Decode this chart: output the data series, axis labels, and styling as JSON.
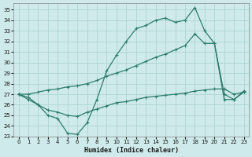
{
  "xlabel": "Humidex (Indice chaleur)",
  "bg_color": "#ceeaea",
  "grid_color": "#b0d4d4",
  "line_color": "#2e7d6e",
  "xlim": [
    -0.5,
    23.5
  ],
  "ylim": [
    23,
    35.6
  ],
  "xticks": [
    0,
    1,
    2,
    3,
    4,
    5,
    6,
    7,
    8,
    9,
    10,
    11,
    12,
    13,
    14,
    15,
    16,
    17,
    18,
    19,
    20,
    21,
    22,
    23
  ],
  "yticks": [
    23,
    24,
    25,
    26,
    27,
    28,
    29,
    30,
    31,
    32,
    33,
    34,
    35
  ],
  "line1_x": [
    0,
    1,
    2,
    3,
    4,
    5,
    6,
    7,
    8,
    9,
    10,
    11,
    12,
    13,
    14,
    15,
    16,
    17,
    18,
    19,
    20,
    21,
    22,
    23
  ],
  "line1_y": [
    27.0,
    26.5,
    26.0,
    25.0,
    24.7,
    23.3,
    23.2,
    24.3,
    26.5,
    29.2,
    30.7,
    32.0,
    33.2,
    33.5,
    34.0,
    34.2,
    33.8,
    34.0,
    35.2,
    33.0,
    31.8,
    26.5,
    26.5,
    27.3
  ],
  "line2_x": [
    0,
    1,
    2,
    3,
    4,
    5,
    6,
    7,
    8,
    9,
    10,
    11,
    12,
    13,
    14,
    15,
    16,
    17,
    18,
    19,
    20,
    21,
    22,
    23
  ],
  "line2_y": [
    27.0,
    27.0,
    27.2,
    27.4,
    27.5,
    27.7,
    27.8,
    28.0,
    28.3,
    28.7,
    29.0,
    29.3,
    29.7,
    30.1,
    30.5,
    30.8,
    31.2,
    31.6,
    32.7,
    31.8,
    31.8,
    27.0,
    26.5,
    27.2
  ],
  "line3_x": [
    0,
    1,
    2,
    3,
    4,
    5,
    6,
    7,
    8,
    9,
    10,
    11,
    12,
    13,
    14,
    15,
    16,
    17,
    18,
    19,
    20,
    21,
    22,
    23
  ],
  "line3_y": [
    27.0,
    26.7,
    26.0,
    25.5,
    25.3,
    25.0,
    24.9,
    25.3,
    25.6,
    25.9,
    26.2,
    26.3,
    26.5,
    26.7,
    26.8,
    26.9,
    27.0,
    27.1,
    27.3,
    27.4,
    27.5,
    27.5,
    27.0,
    27.2
  ]
}
